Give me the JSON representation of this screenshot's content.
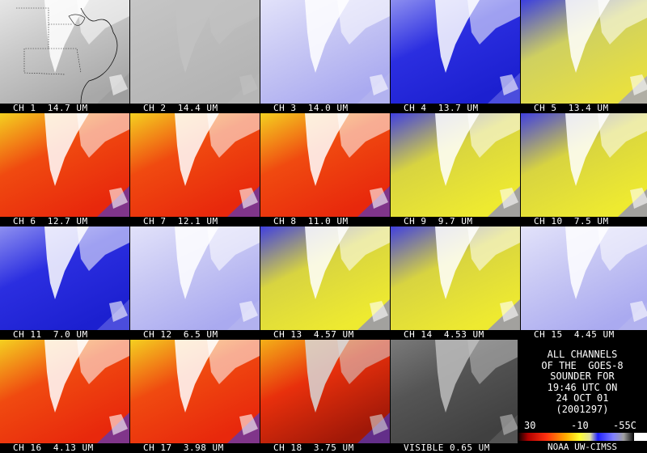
{
  "panels": [
    {
      "label": "CH 1  14.7 UM",
      "palette": "mapgray"
    },
    {
      "label": "CH 2  14.4 UM",
      "palette": "flatgray"
    },
    {
      "label": "CH 3  14.0 UM",
      "palette": "paleblue"
    },
    {
      "label": "CH 4  13.7 UM",
      "palette": "blue"
    },
    {
      "label": "CH 5  13.4 UM",
      "palette": "blueyellow"
    },
    {
      "label": "CH 6  12.7 UM",
      "palette": "hot"
    },
    {
      "label": "CH 7  12.1 UM",
      "palette": "hot"
    },
    {
      "label": "CH 8  11.0 UM",
      "palette": "hot"
    },
    {
      "label": "CH 9  9.7 UM",
      "palette": "yellowblue"
    },
    {
      "label": "CH 10  7.5 UM",
      "palette": "yellowblue"
    },
    {
      "label": "CH 11  7.0 UM",
      "palette": "blue"
    },
    {
      "label": "CH 12  6.5 UM",
      "palette": "paleblue"
    },
    {
      "label": "CH 13  4.57 UM",
      "palette": "yellowblue"
    },
    {
      "label": "CH 14  4.53 UM",
      "palette": "yellowblue"
    },
    {
      "label": "CH 15  4.45 UM",
      "palette": "paleblue"
    },
    {
      "label": "CH 16  4.13 UM",
      "palette": "hot"
    },
    {
      "label": "CH 17  3.98 UM",
      "palette": "hot"
    },
    {
      "label": "CH 18  3.75 UM",
      "palette": "hotdark"
    },
    {
      "label": "VISIBLE 0.65 UM",
      "palette": "darkgray"
    }
  ],
  "info": {
    "line1": "ALL CHANNELS",
    "line2": "OF THE  GOES-8",
    "line3": "SOUNDER FOR",
    "line4": "19:46 UTC ON",
    "line5": "24 OCT 01",
    "line6": "(2001297)"
  },
  "scale": {
    "t1": "30",
    "t2": "-10",
    "t3": "-55C"
  },
  "credit": "NOAA UW-CIMSS",
  "colors": {
    "background": "#000000",
    "hot_red": "#e52a10",
    "hot_yellow": "#f2e81a",
    "blue": "#2a2ee0",
    "white": "#ffffff"
  }
}
